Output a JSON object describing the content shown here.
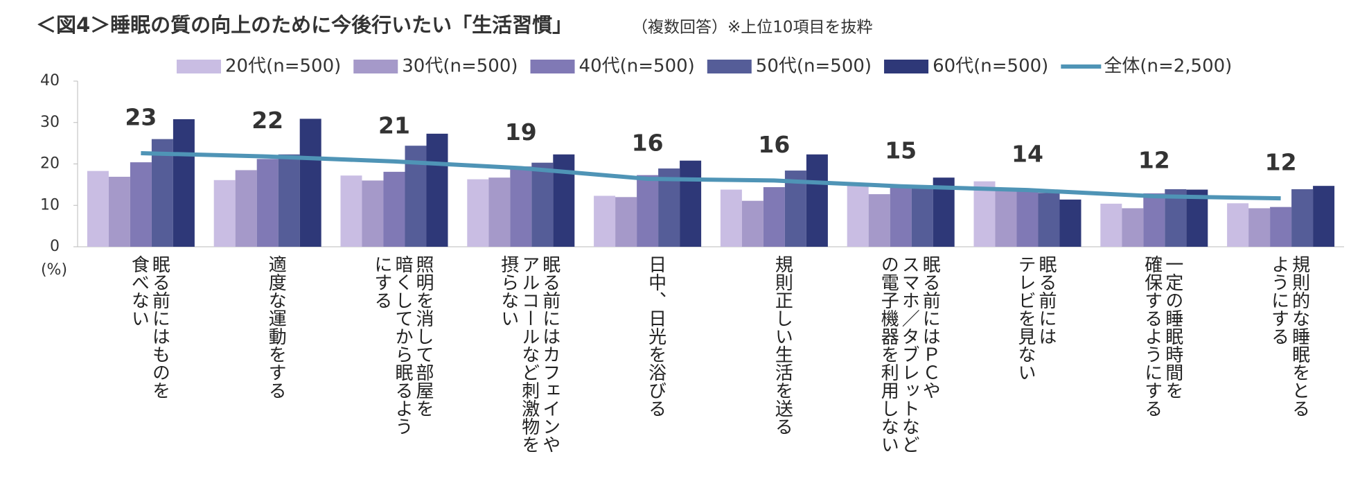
{
  "chart_data": {
    "type": "bar",
    "title": "＜図4＞睡眠の質の向上のために今後行いたい「生活習慣」",
    "subtitle": "（複数回答）※上位10項目を抜粋",
    "y_label": "(%)",
    "categories": [
      "眠る前にはものを\n食べない",
      "適度な運動をする",
      "照明を消して部屋を\n暗くしてから眠るよう\nにする",
      "眠る前にはカフェインや\nアルコールなど刺激物を\n摂らない",
      "日中、日光を浴びる",
      "規則正しい生活を送る",
      "眠る前にはＰＣや\nスマホ／タブレットなど\nの電子機器を利用しない",
      "眠る前には\nテレビを見ない",
      "一定の睡眠時間を\n確保するようにする",
      "規則的な睡眠をとる\nようにする"
    ],
    "series": [
      {
        "name": "20代(n=500)",
        "type": "bar",
        "color": "#c9bde3",
        "values": [
          18.3,
          16.1,
          17.2,
          16.3,
          12.3,
          13.8,
          14.8,
          15.8,
          10.4,
          10.5
        ]
      },
      {
        "name": "30代(n=500)",
        "type": "bar",
        "color": "#a599c9",
        "values": [
          16.9,
          18.5,
          16.0,
          16.7,
          12.0,
          11.1,
          12.7,
          13.9,
          9.3,
          9.3
        ]
      },
      {
        "name": "40代(n=500)",
        "type": "bar",
        "color": "#8079b5",
        "values": [
          20.4,
          21.2,
          18.1,
          19.4,
          17.3,
          14.4,
          14.3,
          13.7,
          12.9,
          9.6
        ]
      },
      {
        "name": "50代(n=500)",
        "type": "bar",
        "color": "#555d98",
        "values": [
          26.0,
          22.3,
          24.4,
          20.3,
          18.9,
          18.4,
          14.3,
          13.0,
          13.9,
          13.9
        ]
      },
      {
        "name": "60代(n=500)",
        "type": "bar",
        "color": "#2e3878",
        "values": [
          30.8,
          30.9,
          27.3,
          22.3,
          20.8,
          22.3,
          16.7,
          11.4,
          13.8,
          14.7
        ]
      },
      {
        "name": "全体(n=2,500)",
        "type": "line",
        "color": "#4f94b6",
        "values": [
          22.6,
          21.8,
          20.6,
          19.0,
          16.4,
          16.0,
          14.6,
          13.7,
          12.2,
          11.7
        ],
        "value_labels": [
          "23",
          "22",
          "21",
          "19",
          "16",
          "16",
          "15",
          "14",
          "12",
          "12"
        ]
      }
    ],
    "ylim": [
      0,
      40
    ],
    "yticks": [
      0,
      10,
      20,
      30,
      40
    ],
    "grid": false
  }
}
